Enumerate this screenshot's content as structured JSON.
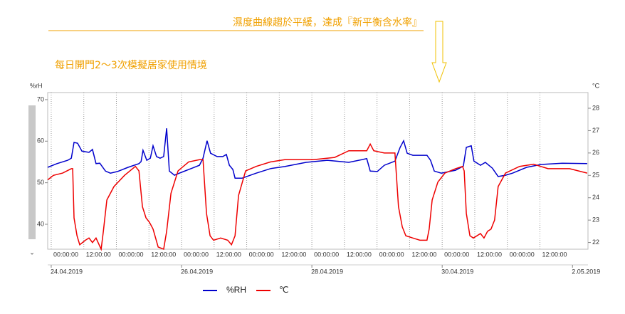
{
  "chart_data": {
    "type": "line",
    "title": "濕度曲線趨於平緩，達成『新平衡含水率』",
    "subtitle": "每日開門2～3次模擬居家使用情境",
    "y_label": "%rH",
    "y2_label": "°C",
    "xlim": [
      -1.3,
      197.7
    ],
    "xticks": [
      {
        "value": 0,
        "label": "00:00:00"
      },
      {
        "value": 12,
        "label": "12:00:00"
      },
      {
        "value": 24,
        "label": "00:00:00"
      },
      {
        "value": 36,
        "label": "12:00:00"
      },
      {
        "value": 48,
        "label": "00:00:00"
      },
      {
        "value": 60,
        "label": "12:00:00"
      },
      {
        "value": 72,
        "label": "00:00:00"
      },
      {
        "value": 84,
        "label": "12:00:00"
      },
      {
        "value": 96,
        "label": "00:00:00"
      },
      {
        "value": 108,
        "label": "12:00:00"
      },
      {
        "value": 120,
        "label": "00:00:00"
      },
      {
        "value": 132,
        "label": "12:00:00"
      },
      {
        "value": 144,
        "label": "00:00:00"
      },
      {
        "value": 156,
        "label": "12:00:00"
      },
      {
        "value": 168,
        "label": "00:00:00"
      },
      {
        "value": 180,
        "label": "12:00:00"
      }
    ],
    "date_ticks": [
      {
        "value": 0,
        "label": "24.04.2019"
      },
      {
        "value": 48,
        "label": "26.04.2019"
      },
      {
        "value": 96,
        "label": "28.04.2019"
      },
      {
        "value": 144,
        "label": "30.04.2019"
      },
      {
        "value": 192,
        "label": "2.05.2019"
      }
    ],
    "ylim": [
      34,
      71.7
    ],
    "yticks": [
      40,
      50,
      60,
      70
    ],
    "y2lim": [
      21.7,
      28.7
    ],
    "y2ticks": [
      22,
      23,
      24,
      25,
      26,
      27,
      28
    ],
    "grid": "x",
    "series": [
      {
        "name": "%RH",
        "color": "#0000cc",
        "x": [
          -1.3,
          2.1,
          6.1,
          7.4,
          8.4,
          9.7,
          11.3,
          13.9,
          15.2,
          16.5,
          17.9,
          20.0,
          21.8,
          24.4,
          28.3,
          32.3,
          33.1,
          33.8,
          35.2,
          36.5,
          37.5,
          38.8,
          40.1,
          41.4,
          42.5,
          43.5,
          45.4,
          48.0,
          51.9,
          54.6,
          55.9,
          57.4,
          58.7,
          61.1,
          63.2,
          64.5,
          65.6,
          66.9,
          67.7,
          70.3,
          75.5,
          80.8,
          86.0,
          93.9,
          101.7,
          109.6,
          116.2,
          117.5,
          120.1,
          122.7,
          126.6,
          128.5,
          129.8,
          131.1,
          133.2,
          138.4,
          139.7,
          141.1,
          143.7,
          148.9,
          151.8,
          152.9,
          154.7,
          155.7,
          158.1,
          159.9,
          162.5,
          164.6,
          167.3,
          169.9,
          175.1,
          180.4,
          188.2,
          197.4
        ],
        "values": [
          53.7,
          54.6,
          55.4,
          55.9,
          59.7,
          59.5,
          57.6,
          57.3,
          58.0,
          54.6,
          54.7,
          52.8,
          52.3,
          52.7,
          53.7,
          54.6,
          55.1,
          57.8,
          55.4,
          55.9,
          58.9,
          56.3,
          55.9,
          56.3,
          63.1,
          52.8,
          51.8,
          52.5,
          53.5,
          54.2,
          55.9,
          60.1,
          57.1,
          56.3,
          56.3,
          56.8,
          54.2,
          53.2,
          51.1,
          51.1,
          52.3,
          53.4,
          53.9,
          54.9,
          55.4,
          54.9,
          55.8,
          52.8,
          52.7,
          54.2,
          55.2,
          58.5,
          60.1,
          57.1,
          56.6,
          56.6,
          55.4,
          52.8,
          52.3,
          53.0,
          54.0,
          58.5,
          58.9,
          55.2,
          54.2,
          54.9,
          53.5,
          51.5,
          51.8,
          52.3,
          53.7,
          54.4,
          54.7,
          54.6
        ]
      },
      {
        "name": "℃",
        "color": "#ee0000",
        "axis": "y2",
        "x": [
          -1.3,
          0.8,
          4.2,
          7.4,
          7.9,
          8.4,
          9.5,
          10.5,
          12.6,
          13.9,
          15.2,
          16.5,
          18.4,
          19.2,
          20.5,
          23.1,
          27.0,
          31.0,
          32.3,
          33.6,
          34.9,
          36.2,
          37.5,
          39.4,
          41.4,
          42.5,
          44.1,
          46.7,
          50.6,
          54.6,
          55.9,
          57.2,
          58.5,
          59.8,
          62.4,
          65.0,
          66.4,
          67.7,
          69.0,
          71.6,
          75.5,
          80.8,
          86.0,
          96.5,
          104.4,
          109.6,
          116.2,
          117.5,
          118.8,
          122.7,
          126.6,
          127.9,
          129.3,
          130.6,
          133.2,
          135.8,
          138.4,
          139.2,
          140.3,
          142.4,
          145.0,
          148.9,
          151.5,
          152.1,
          152.9,
          154.2,
          155.5,
          158.1,
          159.4,
          160.7,
          162.0,
          163.3,
          164.6,
          167.3,
          172.5,
          177.7,
          183.0,
          190.9,
          197.4
        ],
        "values": [
          24.8,
          25.0,
          25.1,
          25.3,
          25.3,
          23.1,
          22.3,
          21.9,
          22.1,
          22.2,
          22.0,
          22.2,
          21.7,
          22.5,
          23.9,
          24.5,
          25.0,
          25.4,
          25.2,
          23.6,
          23.1,
          22.9,
          22.6,
          21.8,
          21.7,
          22.5,
          24.2,
          25.2,
          25.6,
          25.7,
          25.7,
          23.3,
          22.3,
          22.1,
          22.2,
          22.1,
          21.9,
          22.3,
          24.1,
          25.2,
          25.4,
          25.6,
          25.7,
          25.7,
          25.8,
          26.1,
          26.1,
          26.4,
          26.1,
          26.0,
          26.0,
          23.6,
          22.7,
          22.3,
          22.2,
          22.1,
          22.1,
          22.6,
          23.9,
          24.7,
          25.1,
          25.3,
          25.4,
          25.2,
          23.3,
          22.3,
          22.2,
          22.4,
          22.2,
          22.5,
          22.6,
          23.0,
          24.5,
          25.1,
          25.4,
          25.5,
          25.3,
          25.3,
          25.1
        ]
      }
    ]
  }
}
